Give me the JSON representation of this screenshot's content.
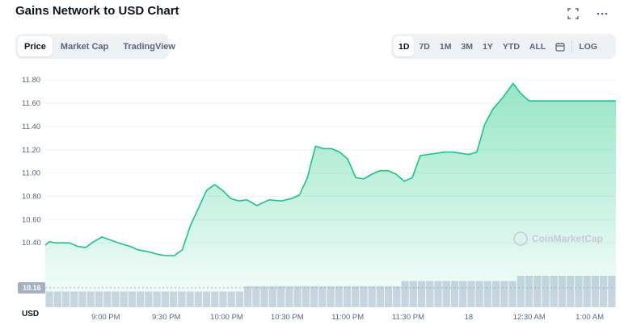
{
  "header": {
    "title": "Gains Network to USD Chart",
    "expand_icon": "expand-icon",
    "more_icon": "more-icon"
  },
  "tabs_left": [
    {
      "label": "Price",
      "active": true
    },
    {
      "label": "Market Cap",
      "active": false
    },
    {
      "label": "TradingView",
      "active": false
    }
  ],
  "tabs_right": [
    {
      "label": "1D",
      "active": true
    },
    {
      "label": "7D",
      "active": false
    },
    {
      "label": "1M",
      "active": false
    },
    {
      "label": "3M",
      "active": false
    },
    {
      "label": "1Y",
      "active": false
    },
    {
      "label": "YTD",
      "active": false
    },
    {
      "label": "ALL",
      "active": false
    }
  ],
  "calendar_icon": "calendar-icon",
  "log_label": "LOG",
  "currency_label": "USD",
  "watermark": "CoinMarketCap",
  "colors": {
    "line": "#16c784",
    "area_top": "#16c784",
    "volume": "#cfd6e4",
    "current_badge": "#a6b0c3"
  },
  "chart_data": {
    "type": "area",
    "title": "",
    "xlabel": "",
    "ylabel": "",
    "current_price_label": "10.16",
    "ylim": [
      10.2,
      11.85
    ],
    "y_ticks": [
      "11.80",
      "11.60",
      "11.40",
      "11.20",
      "11.00",
      "10.80",
      "10.60",
      "10.40"
    ],
    "y_tick_values": [
      11.8,
      11.6,
      11.4,
      11.2,
      11.0,
      10.8,
      10.6,
      10.4
    ],
    "x_ticks": [
      "9:00 PM",
      "9:30 PM",
      "10:00 PM",
      "10:30 PM",
      "11:00 PM",
      "11:30 PM",
      "18",
      "12:30 AM",
      "1:00 AM"
    ],
    "x_tick_minutes": [
      30,
      60,
      90,
      120,
      150,
      180,
      210,
      240,
      270
    ],
    "series": [
      {
        "minutes": [
          0,
          2,
          5,
          12,
          16,
          20,
          24,
          28,
          33,
          38,
          42,
          46,
          52,
          56,
          60,
          64,
          68,
          72,
          76,
          80,
          84,
          88,
          92,
          96,
          100,
          105,
          111,
          117,
          122,
          126,
          130,
          134,
          138,
          142,
          146,
          150,
          154,
          158,
          162,
          166,
          170,
          174,
          178,
          182,
          186,
          190,
          194,
          198,
          202,
          206,
          210,
          214,
          218,
          222,
          227,
          232,
          236,
          240,
          244,
          248,
          252,
          256,
          260,
          264,
          268,
          272,
          276,
          280,
          283
        ],
        "values": [
          10.38,
          10.41,
          10.4,
          10.4,
          10.37,
          10.36,
          10.41,
          10.45,
          10.42,
          10.39,
          10.37,
          10.34,
          10.32,
          10.3,
          10.29,
          10.29,
          10.34,
          10.55,
          10.7,
          10.85,
          10.9,
          10.85,
          10.78,
          10.76,
          10.77,
          10.72,
          10.77,
          10.76,
          10.78,
          10.81,
          10.96,
          11.23,
          11.21,
          11.21,
          11.18,
          11.12,
          10.96,
          10.95,
          10.99,
          11.02,
          11.02,
          10.99,
          10.93,
          10.96,
          11.15,
          11.16,
          11.17,
          11.18,
          11.18,
          11.17,
          11.16,
          11.18,
          11.42,
          11.55,
          11.65,
          11.77,
          11.68,
          11.62,
          11.62,
          11.62,
          11.62,
          11.62,
          11.62,
          11.62,
          11.62,
          11.62,
          11.62,
          11.62,
          11.62
        ]
      }
    ],
    "volume": [
      3,
      3,
      3,
      3,
      3,
      3,
      3,
      3,
      3,
      3,
      3,
      3,
      3,
      3,
      3,
      3,
      3,
      3,
      3,
      3,
      3,
      3,
      3,
      3,
      4,
      4,
      4,
      4,
      4,
      4,
      4,
      4,
      4,
      4,
      4,
      4,
      4,
      4,
      4,
      4,
      4,
      4,
      4,
      5,
      5,
      5,
      5,
      5,
      5,
      5,
      5,
      5,
      5,
      5,
      5,
      5,
      5,
      6,
      6,
      6,
      6,
      6,
      6,
      6,
      6,
      6,
      6,
      6,
      6
    ]
  }
}
